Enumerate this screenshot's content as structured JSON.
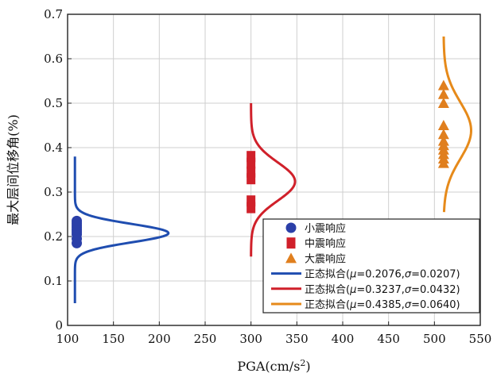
{
  "chart_data": {
    "type": "scatter",
    "xlabel": "PGA(cm/s",
    "xlabel_sup": "2",
    "xlabel_end": ")",
    "ylabel": "最大层间位移角(%)",
    "xlim": [
      100,
      550
    ],
    "ylim": [
      0,
      0.7
    ],
    "x_ticks": [
      100,
      150,
      200,
      250,
      300,
      350,
      400,
      450,
      500,
      550
    ],
    "y_ticks": [
      0,
      0.1,
      0.2,
      0.3,
      0.4,
      0.5,
      0.6,
      0.7
    ],
    "x_tick_labels": [
      "100",
      "150",
      "200",
      "250",
      "300",
      "350",
      "400",
      "450",
      "500",
      "550"
    ],
    "y_tick_labels": [
      "0",
      "0.1",
      "0.2",
      "0.3",
      "0.4",
      "0.5",
      "0.6",
      "0.7"
    ],
    "grid": true,
    "legend_position": "bottom-right",
    "scatter_series": [
      {
        "name": "小震响应",
        "marker": "circle",
        "color": "#2b3fa8",
        "x": 110,
        "y": [
          0.185,
          0.195,
          0.205,
          0.21,
          0.215,
          0.22,
          0.225,
          0.23,
          0.235
        ]
      },
      {
        "name": "中震响应",
        "marker": "square",
        "color": "#d0202a",
        "x": 300,
        "y": [
          0.265,
          0.28,
          0.33,
          0.345,
          0.365,
          0.38
        ]
      },
      {
        "name": "大震响应",
        "marker": "triangle",
        "color": "#e07f1e",
        "x": 510,
        "y": [
          0.365,
          0.375,
          0.385,
          0.395,
          0.405,
          0.415,
          0.43,
          0.45,
          0.5,
          0.52,
          0.54
        ]
      }
    ],
    "fit_series": [
      {
        "label_prefix": "正态拟合(",
        "mu_symbol": "μ",
        "mu_text": "=0.2076,",
        "sigma_symbol": "σ",
        "sigma_text": "=0.0207)",
        "color": "#1f4db0",
        "mu": 0.2076,
        "sigma": 0.0207,
        "base_x": 108,
        "peak_x": 210,
        "y_range": [
          0.05,
          0.38
        ]
      },
      {
        "label_prefix": "正态拟合(",
        "mu_symbol": "μ",
        "mu_text": "=0.3237,",
        "sigma_symbol": "σ",
        "sigma_text": "=0.0432)",
        "color": "#d0202a",
        "mu": 0.3237,
        "sigma": 0.0432,
        "base_x": 300,
        "peak_x": 348,
        "y_range": [
          0.155,
          0.5
        ]
      },
      {
        "label_prefix": "正态拟合(",
        "mu_symbol": "μ",
        "mu_text": "=0.4385,",
        "sigma_symbol": "σ",
        "sigma_text": "=0.0640)",
        "color": "#e68a1a",
        "mu": 0.4385,
        "sigma": 0.064,
        "base_x": 510,
        "peak_x": 540,
        "y_range": [
          0.255,
          0.65
        ]
      }
    ]
  }
}
